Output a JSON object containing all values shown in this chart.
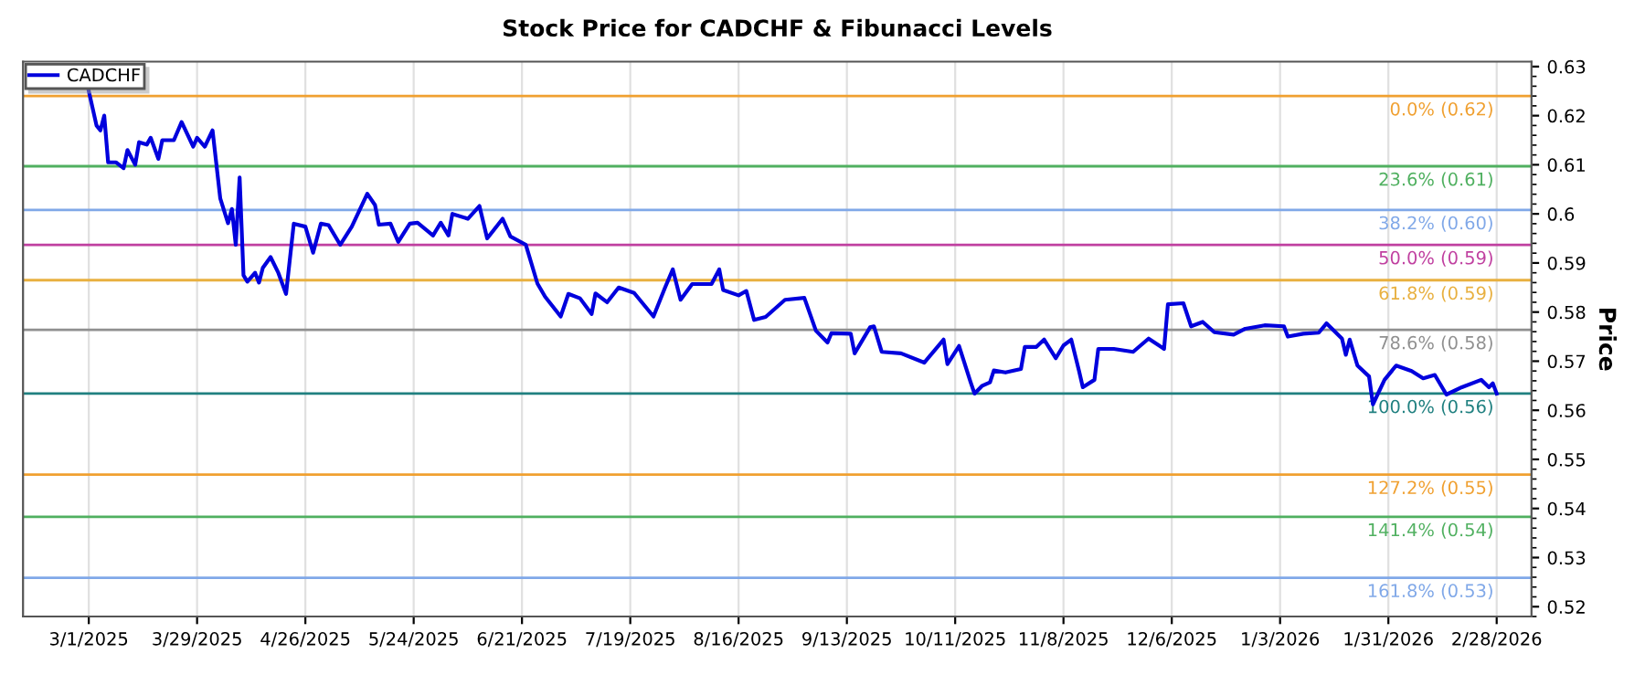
{
  "chart_data": {
    "type": "line",
    "title": "Stock Price for CADCHF & Fibunacci Levels",
    "ylabel": "Price",
    "x": [
      "2025-03-01",
      "2025-03-03",
      "2025-03-04",
      "2025-03-05",
      "2025-03-06",
      "2025-03-08",
      "2025-03-10",
      "2025-03-11",
      "2025-03-13",
      "2025-03-14",
      "2025-03-16",
      "2025-03-17",
      "2025-03-19",
      "2025-03-20",
      "2025-03-23",
      "2025-03-25",
      "2025-03-28",
      "2025-03-29",
      "2025-03-31",
      "2025-04-02",
      "2025-04-04",
      "2025-04-06",
      "2025-04-07",
      "2025-04-08",
      "2025-04-09",
      "2025-04-10",
      "2025-04-11",
      "2025-04-13",
      "2025-04-14",
      "2025-04-15",
      "2025-04-17",
      "2025-04-19",
      "2025-04-21",
      "2025-04-23",
      "2025-04-26",
      "2025-04-28",
      "2025-04-30",
      "2025-05-02",
      "2025-05-05",
      "2025-05-08",
      "2025-05-12",
      "2025-05-14",
      "2025-05-15",
      "2025-05-18",
      "2025-05-20",
      "2025-05-23",
      "2025-05-25",
      "2025-05-29",
      "2025-05-31",
      "2025-06-02",
      "2025-06-03",
      "2025-06-07",
      "2025-06-10",
      "2025-06-12",
      "2025-06-16",
      "2025-06-18",
      "2025-06-22",
      "2025-06-25",
      "2025-06-27",
      "2025-07-01",
      "2025-07-03",
      "2025-07-06",
      "2025-07-09",
      "2025-07-10",
      "2025-07-13",
      "2025-07-16",
      "2025-07-20",
      "2025-07-25",
      "2025-07-28",
      "2025-07-30",
      "2025-08-01",
      "2025-08-04",
      "2025-08-09",
      "2025-08-11",
      "2025-08-12",
      "2025-08-16",
      "2025-08-18",
      "2025-08-20",
      "2025-08-23",
      "2025-08-28",
      "2025-09-02",
      "2025-09-05",
      "2025-09-08",
      "2025-09-09",
      "2025-09-14",
      "2025-09-15",
      "2025-09-19",
      "2025-09-20",
      "2025-09-22",
      "2025-09-27",
      "2025-10-03",
      "2025-10-08",
      "2025-10-09",
      "2025-10-12",
      "2025-10-15",
      "2025-10-16",
      "2025-10-18",
      "2025-10-20",
      "2025-10-21",
      "2025-10-24",
      "2025-10-28",
      "2025-10-29",
      "2025-11-01",
      "2025-11-03",
      "2025-11-06",
      "2025-11-08",
      "2025-11-10",
      "2025-11-12",
      "2025-11-13",
      "2025-11-16",
      "2025-11-17",
      "2025-11-21",
      "2025-11-26",
      "2025-11-30",
      "2025-12-04",
      "2025-12-05",
      "2025-12-09",
      "2025-12-11",
      "2025-12-14",
      "2025-12-17",
      "2025-12-22",
      "2025-12-25",
      "2025-12-30",
      "2026-01-04",
      "2026-01-05",
      "2026-01-09",
      "2026-01-13",
      "2026-01-15",
      "2026-01-19",
      "2026-01-20",
      "2026-01-21",
      "2026-01-23",
      "2026-01-26",
      "2026-01-27",
      "2026-01-30",
      "2026-02-02",
      "2026-02-06",
      "2026-02-09",
      "2026-02-12",
      "2026-02-15",
      "2026-02-19",
      "2026-02-24",
      "2026-02-26",
      "2026-02-27",
      "2026-02-28"
    ],
    "series": [
      {
        "name": "CADCHF",
        "color": "#0000dd",
        "values": [
          0.625,
          0.618,
          0.617,
          0.62,
          0.6105,
          0.6105,
          0.6093,
          0.613,
          0.61,
          0.6146,
          0.6141,
          0.6155,
          0.6112,
          0.615,
          0.615,
          0.6187,
          0.6137,
          0.6155,
          0.6137,
          0.617,
          0.6031,
          0.5981,
          0.601,
          0.5937,
          0.6074,
          0.5875,
          0.5862,
          0.588,
          0.586,
          0.589,
          0.5912,
          0.588,
          0.5837,
          0.598,
          0.5974,
          0.5921,
          0.598,
          0.5977,
          0.5937,
          0.5974,
          0.6041,
          0.6018,
          0.5978,
          0.598,
          0.5943,
          0.598,
          0.5982,
          0.5956,
          0.5982,
          0.5956,
          0.6,
          0.599,
          0.6016,
          0.595,
          0.599,
          0.5954,
          0.5937,
          0.5858,
          0.5831,
          0.5791,
          0.5837,
          0.5828,
          0.5796,
          0.5838,
          0.582,
          0.585,
          0.5839,
          0.5791,
          0.585,
          0.5887,
          0.5825,
          0.5857,
          0.5857,
          0.5887,
          0.5845,
          0.5834,
          0.5843,
          0.5784,
          0.579,
          0.5825,
          0.5829,
          0.5762,
          0.5738,
          0.5757,
          0.5756,
          0.5716,
          0.5769,
          0.5771,
          0.5719,
          0.5716,
          0.5697,
          0.5744,
          0.5694,
          0.5731,
          0.5657,
          0.5634,
          0.565,
          0.5657,
          0.5681,
          0.5677,
          0.5684,
          0.5729,
          0.5729,
          0.5744,
          0.5706,
          0.5732,
          0.5744,
          0.5681,
          0.5647,
          0.5662,
          0.5725,
          0.5725,
          0.5719,
          0.5746,
          0.5725,
          0.5816,
          0.5818,
          0.5771,
          0.578,
          0.5759,
          0.5754,
          0.5766,
          0.5773,
          0.5771,
          0.575,
          0.5756,
          0.5758,
          0.5777,
          0.5746,
          0.5713,
          0.5744,
          0.5691,
          0.5669,
          0.5612,
          0.5662,
          0.5691,
          0.568,
          0.5665,
          0.5672,
          0.5632,
          0.5647,
          0.5662,
          0.5647,
          0.5655,
          0.5634
        ]
      }
    ],
    "ref_lines": [
      {
        "axis": "y",
        "value": 0.624,
        "label": "0.0% (0.62)",
        "color": "#f0a030"
      },
      {
        "axis": "y",
        "value": 0.6097,
        "label": "23.6% (0.61)",
        "color": "#50b060"
      },
      {
        "axis": "y",
        "value": 0.6008,
        "label": "38.2% (0.60)",
        "color": "#80a8e8"
      },
      {
        "axis": "y",
        "value": 0.5937,
        "label": "50.0% (0.59)",
        "color": "#c040a0"
      },
      {
        "axis": "y",
        "value": 0.5865,
        "label": "61.8% (0.59)",
        "color": "#e8b040"
      },
      {
        "axis": "y",
        "value": 0.5764,
        "label": "78.6% (0.58)",
        "color": "#909090"
      },
      {
        "axis": "y",
        "value": 0.5634,
        "label": "100.0% (0.56)",
        "color": "#208080"
      },
      {
        "axis": "y",
        "value": 0.5469,
        "label": "127.2% (0.55)",
        "color": "#f0a030"
      },
      {
        "axis": "y",
        "value": 0.5383,
        "label": "141.4% (0.54)",
        "color": "#50b060"
      },
      {
        "axis": "y",
        "value": 0.5259,
        "label": "161.8% (0.53)",
        "color": "#80a8e8"
      }
    ],
    "xlim": [
      "2025-02-12",
      "2026-03-09"
    ],
    "xticks": [
      {
        "value": "2025-03-01",
        "label": "3/1/2025"
      },
      {
        "value": "2025-03-29",
        "label": "3/29/2025"
      },
      {
        "value": "2025-04-26",
        "label": "4/26/2025"
      },
      {
        "value": "2025-05-24",
        "label": "5/24/2025"
      },
      {
        "value": "2025-06-21",
        "label": "6/21/2025"
      },
      {
        "value": "2025-07-19",
        "label": "7/19/2025"
      },
      {
        "value": "2025-08-16",
        "label": "8/16/2025"
      },
      {
        "value": "2025-09-13",
        "label": "9/13/2025"
      },
      {
        "value": "2025-10-11",
        "label": "10/11/2025"
      },
      {
        "value": "2025-11-08",
        "label": "11/8/2025"
      },
      {
        "value": "2025-12-06",
        "label": "12/6/2025"
      },
      {
        "value": "2026-01-03",
        "label": "1/3/2026"
      },
      {
        "value": "2026-01-31",
        "label": "1/31/2026"
      },
      {
        "value": "2026-02-28",
        "label": "2/28/2026"
      }
    ],
    "ylim": [
      0.518,
      0.631
    ],
    "yticks": [
      0.52,
      0.53,
      0.54,
      0.55,
      0.56,
      0.57,
      0.58,
      0.59,
      0.6,
      0.61,
      0.62,
      0.63
    ],
    "grid": "x",
    "legend": "top left",
    "marker": "none",
    "line_style": "solid"
  }
}
